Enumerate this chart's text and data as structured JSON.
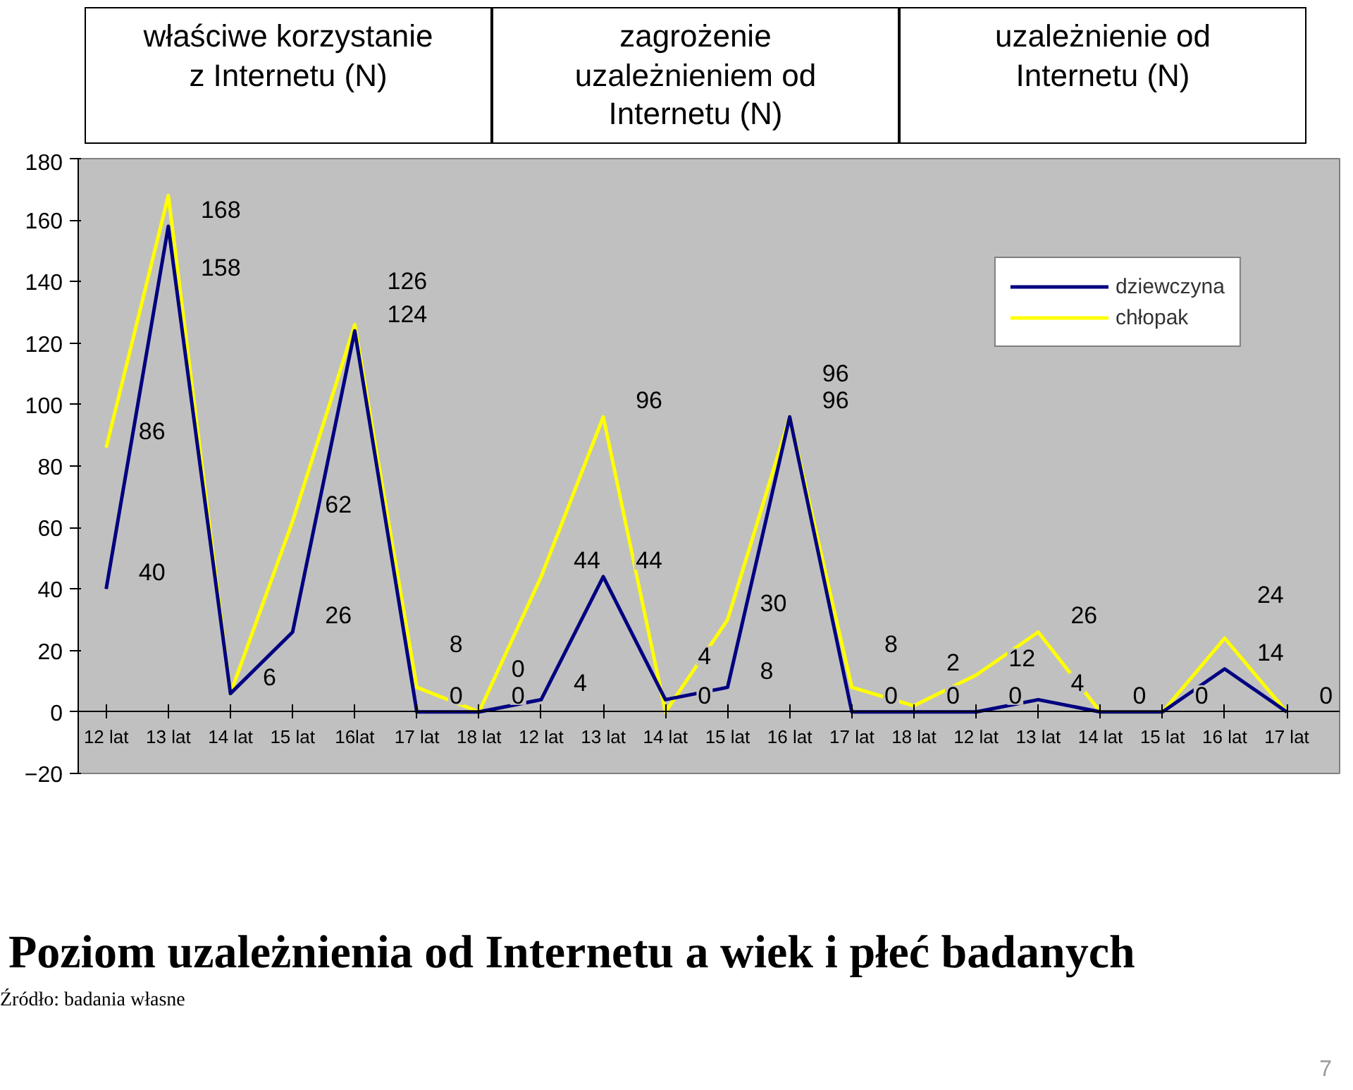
{
  "chart_data": {
    "type": "line",
    "title": "Poziom uzależnienia od Internetu a wiek i płeć badanych",
    "annotations": [
      "właściwe korzystanie z Internetu (N)",
      "zagrożenie uzależnieniem od Internetu (N)",
      "uzależnienie od Internetu (N)",
      "Źródło: badania własne",
      "7"
    ],
    "categories": [
      "12 lat",
      "13 lat",
      "14 lat",
      "15 lat",
      "16lat",
      "17 lat",
      "18 lat",
      "12 lat",
      "13 lat",
      "14 lat",
      "15 lat",
      "16 lat",
      "17 lat",
      "18 lat",
      "12 lat",
      "13 lat",
      "14 lat",
      "15 lat",
      "16 lat",
      "17 lat"
    ],
    "series": [
      {
        "name": "dziewczyna",
        "color": "#000080",
        "values": [
          40,
          158,
          6,
          26,
          124,
          0,
          0,
          4,
          44,
          4,
          8,
          96,
          0,
          0,
          0,
          4,
          0,
          0,
          14,
          0
        ],
        "value_labels": [
          "40",
          "158",
          "6",
          "26",
          "124",
          "0",
          "0",
          "4",
          "44",
          "4",
          "8",
          "96",
          "0",
          "0",
          "0",
          "4",
          "0",
          "0",
          "14",
          "0"
        ]
      },
      {
        "name": "chłopak",
        "color": "#ffff00",
        "values": [
          86,
          168,
          6,
          62,
          126,
          8,
          0,
          44,
          96,
          0,
          30,
          96,
          8,
          2,
          12,
          26,
          0,
          0,
          24,
          0
        ],
        "value_labels": [
          "86",
          "168",
          null,
          "62",
          "126",
          "8",
          "0",
          "44",
          "96",
          "0",
          "30",
          "96",
          "8",
          "2",
          "12",
          "26",
          null,
          null,
          "24",
          null
        ]
      }
    ],
    "ylim": [
      -20,
      180
    ],
    "yticks": [
      -20,
      0,
      20,
      40,
      60,
      80,
      100,
      120,
      140,
      160,
      180
    ],
    "grid": false,
    "legend": "top right",
    "marker": "none",
    "line_style": "solid"
  }
}
